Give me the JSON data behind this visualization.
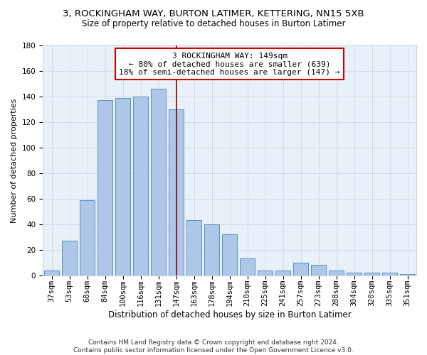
{
  "title1": "3, ROCKINGHAM WAY, BURTON LATIMER, KETTERING, NN15 5XB",
  "title2": "Size of property relative to detached houses in Burton Latimer",
  "xlabel": "Distribution of detached houses by size in Burton Latimer",
  "ylabel": "Number of detached properties",
  "categories": [
    "37sqm",
    "53sqm",
    "68sqm",
    "84sqm",
    "100sqm",
    "116sqm",
    "131sqm",
    "147sqm",
    "163sqm",
    "178sqm",
    "194sqm",
    "210sqm",
    "225sqm",
    "241sqm",
    "257sqm",
    "273sqm",
    "288sqm",
    "304sqm",
    "320sqm",
    "335sqm",
    "351sqm"
  ],
  "values": [
    4,
    27,
    59,
    137,
    139,
    140,
    146,
    130,
    43,
    40,
    32,
    13,
    4,
    4,
    10,
    8,
    4,
    2,
    2,
    2,
    1
  ],
  "bar_color": "#aec6e8",
  "bar_edge_color": "#5a8fc0",
  "vline_x_index": 7,
  "vline_color": "#8b0000",
  "annotation_line1": "3 ROCKINGHAM WAY: 149sqm",
  "annotation_line2": "← 80% of detached houses are smaller (639)",
  "annotation_line3": "18% of semi-detached houses are larger (147) →",
  "annotation_box_color": "#ffffff",
  "annotation_box_edge_color": "#cc0000",
  "ylim": [
    0,
    180
  ],
  "yticks": [
    0,
    20,
    40,
    60,
    80,
    100,
    120,
    140,
    160,
    180
  ],
  "background_color": "#e8f0f8",
  "footer": "Contains HM Land Registry data © Crown copyright and database right 2024.\nContains public sector information licensed under the Open Government Licence v3.0.",
  "title1_fontsize": 9.5,
  "title2_fontsize": 8.5,
  "xlabel_fontsize": 8.5,
  "ylabel_fontsize": 8,
  "tick_fontsize": 7.5,
  "annotation_fontsize": 8,
  "footer_fontsize": 6.5
}
